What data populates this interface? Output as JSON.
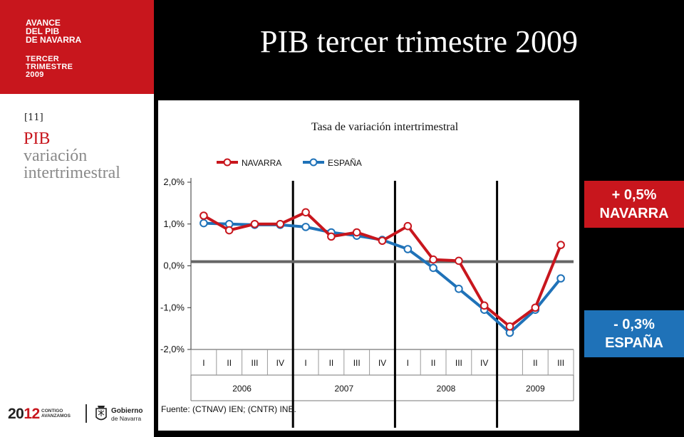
{
  "sidebar": {
    "header_lines": [
      "AVANCE",
      "DEL  PIB",
      "DE NAVARRA"
    ],
    "sub_lines": [
      "TERCER",
      "TRIMESTRE",
      "2009"
    ],
    "slide_number": "[11]",
    "section_title": "PIB",
    "section_subtitle_lines": [
      "variación",
      "intertrimestral"
    ],
    "footer": {
      "logo_year_a": "20",
      "logo_year_b": "12",
      "tagline_lines": [
        "CONTIGO",
        "AVANZAMOS"
      ],
      "gov_lines": [
        "Gobierno",
        "de Navarra"
      ]
    }
  },
  "main_title": "PIB tercer trimestre 2009",
  "badges": {
    "navarra": {
      "value": "+ 0,5%",
      "label": "NAVARRA",
      "color": "#c8161d"
    },
    "espana": {
      "value": "- 0,3%",
      "label": "ESPAÑA",
      "color": "#1f72b8"
    }
  },
  "chart_data": {
    "type": "line",
    "title": "Tasa de variación intertrimestral",
    "source": "Fuente: (CTNAV) IEN; (CNTR) INE.",
    "x": [
      "I",
      "II",
      "III",
      "IV",
      "I",
      "II",
      "III",
      "IV",
      "I",
      "II",
      "III",
      "IV",
      "",
      "II",
      "III"
    ],
    "x_groups": [
      {
        "label": "2006",
        "span": 4
      },
      {
        "label": "2007",
        "span": 4
      },
      {
        "label": "2008",
        "span": 4
      },
      {
        "label": "2009",
        "span": 3
      }
    ],
    "ylim": [
      -2.0,
      2.0
    ],
    "yticks": [
      "2,0%",
      "1,0%",
      "0,0%",
      "-1,0%",
      "-2,0%"
    ],
    "reference_line": 0.1,
    "legend_position": "top",
    "series": [
      {
        "name": "NAVARRA",
        "color": "#c8161d",
        "values": [
          1.2,
          0.85,
          1.0,
          1.0,
          1.28,
          0.7,
          0.8,
          0.6,
          0.95,
          0.15,
          0.12,
          -0.95,
          -1.45,
          -1.0,
          0.5
        ]
      },
      {
        "name": "ESPAÑA",
        "color": "#1f72b8",
        "values": [
          1.02,
          1.0,
          0.98,
          0.98,
          0.93,
          0.8,
          0.72,
          0.62,
          0.4,
          -0.05,
          -0.55,
          -1.05,
          -1.6,
          -1.05,
          -0.3
        ]
      }
    ]
  }
}
